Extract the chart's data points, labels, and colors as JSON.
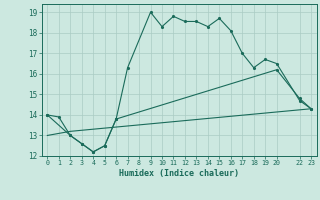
{
  "title": "",
  "xlabel": "Humidex (Indice chaleur)",
  "bg_color": "#cce8e0",
  "line_color": "#1a6b5a",
  "grid_color": "#aaccc4",
  "xlim": [
    -0.5,
    23.5
  ],
  "ylim": [
    12,
    19.4
  ],
  "yticks": [
    12,
    13,
    14,
    15,
    16,
    17,
    18,
    19
  ],
  "xticks": [
    0,
    1,
    2,
    3,
    4,
    5,
    6,
    7,
    8,
    9,
    10,
    11,
    12,
    13,
    14,
    15,
    16,
    17,
    18,
    19,
    20,
    22,
    23
  ],
  "xtick_labels": [
    "0",
    "1",
    "2",
    "3",
    "4",
    "5",
    "6",
    "7",
    "8",
    "9",
    "10",
    "11",
    "12",
    "13",
    "14",
    "15",
    "16",
    "17",
    "18",
    "19",
    "20",
    "22",
    "23"
  ],
  "line1_x": [
    0,
    1,
    2,
    3,
    4,
    5,
    6,
    7,
    9,
    10,
    11,
    12,
    13,
    14,
    15,
    16,
    17,
    18,
    19,
    20,
    22,
    23
  ],
  "line1_y": [
    14.0,
    13.9,
    13.0,
    12.6,
    12.2,
    12.5,
    13.8,
    16.3,
    19.0,
    18.3,
    18.8,
    18.55,
    18.55,
    18.3,
    18.7,
    18.1,
    17.0,
    16.3,
    16.7,
    16.5,
    14.7,
    14.3
  ],
  "line2_x": [
    0,
    2,
    3,
    4,
    5,
    6,
    20,
    22,
    23
  ],
  "line2_y": [
    14.0,
    13.0,
    12.6,
    12.2,
    12.5,
    13.8,
    16.2,
    14.8,
    14.3
  ],
  "line3_x": [
    0,
    2,
    23
  ],
  "line3_y": [
    13.0,
    13.2,
    14.3
  ]
}
